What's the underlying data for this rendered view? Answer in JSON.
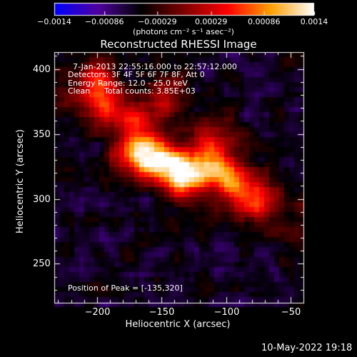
{
  "chart_data": {
    "type": "heatmap",
    "title": "Reconstructed RHESSI Image",
    "annotations": {
      "time_range": "7-Jan-2013 22:55:16.000 to 22:57:12.000",
      "detectors": "Detectors: 3F 4F 5F 6F 7F 8F, Att 0",
      "energy_range": "Energy Range: 12.0 - 25.0 keV",
      "method": "Clean",
      "total_counts": "Total counts: 3.85E+03",
      "peak": "Position of Peak = [-135,320]"
    },
    "xlabel": "Heliocentric X (arcsec)",
    "ylabel": "Heliocentric Y (arcsec)",
    "xlim": [
      -233,
      -40
    ],
    "ylim": [
      220,
      413
    ],
    "xticks": [
      -200,
      -150,
      -100,
      -50
    ],
    "xtick_labels": [
      "−200",
      "−150",
      "−100",
      "−50"
    ],
    "yticks": [
      250,
      300,
      350,
      400
    ],
    "ytick_labels": [
      "250",
      "300",
      "350",
      "400"
    ],
    "colorbar": {
      "range": [
        -0.0014,
        0.0014
      ],
      "ticks": [
        -0.0014,
        -0.00086,
        -0.00029,
        0.00029,
        0.00086,
        0.0014
      ],
      "tick_labels": [
        "−0.0014",
        "−0.00086",
        "−0.00029",
        "0.00029",
        "0.00086",
        "0.0014"
      ],
      "unit": "(photons cm⁻² s⁻¹ asec⁻²)",
      "colormap": [
        "#0000ff",
        "#5000a0",
        "#000000",
        "#800000",
        "#ff0000",
        "#ffa000",
        "#ffffff"
      ]
    },
    "sources": [
      {
        "x": -135,
        "y": 320,
        "relative_intensity": 1.0
      },
      {
        "x": -155,
        "y": 330,
        "relative_intensity": 0.8
      },
      {
        "x": -170,
        "y": 335,
        "relative_intensity": 0.6
      },
      {
        "x": -112,
        "y": 322,
        "relative_intensity": 0.6
      },
      {
        "x": -95,
        "y": 315,
        "relative_intensity": 0.5
      },
      {
        "x": -78,
        "y": 300,
        "relative_intensity": 0.55
      },
      {
        "x": -110,
        "y": 345,
        "relative_intensity": 0.5
      },
      {
        "x": -170,
        "y": 360,
        "relative_intensity": 0.45
      },
      {
        "x": -195,
        "y": 375,
        "relative_intensity": 0.45
      },
      {
        "x": -145,
        "y": 378,
        "relative_intensity": 0.45
      },
      {
        "x": -200,
        "y": 395,
        "relative_intensity": 0.4
      }
    ]
  },
  "timestamp": "10-May-2022 19:18"
}
